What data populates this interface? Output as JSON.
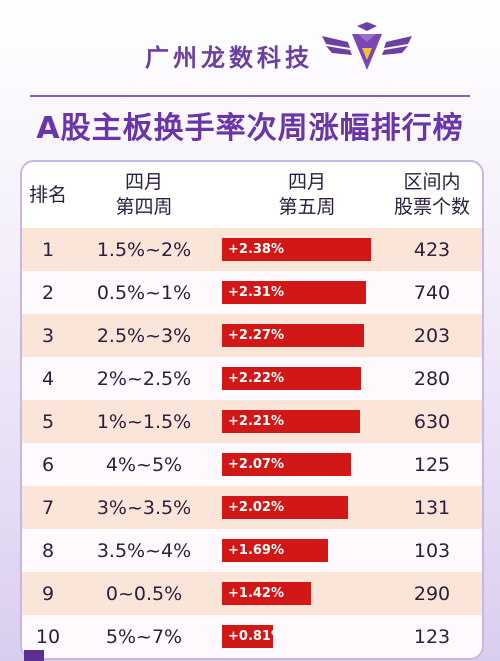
{
  "header": {
    "company": "广州龙数科技",
    "title": "A股主板换手率次周涨幅排行榜",
    "logo_icon": "purple-winged-diamond-logo",
    "colors": {
      "brand": "#6a35a8",
      "bar": "#d21717"
    }
  },
  "table": {
    "headers": {
      "rank": "排名",
      "week4_line1": "四月",
      "week4_line2": "第四周",
      "week5_line1": "四月",
      "week5_line2": "第五周",
      "count_line1": "区间内",
      "count_line2": "股票个数"
    },
    "rows": [
      {
        "rank": "1",
        "range": "1.5%~2%",
        "change": "+2.38%",
        "count": "423"
      },
      {
        "rank": "2",
        "range": "0.5%~1%",
        "change": "+2.31%",
        "count": "740"
      },
      {
        "rank": "3",
        "range": "2.5%~3%",
        "change": "+2.27%",
        "count": "203"
      },
      {
        "rank": "4",
        "range": "2%~2.5%",
        "change": "+2.22%",
        "count": "280"
      },
      {
        "rank": "5",
        "range": "1%~1.5%",
        "change": "+2.21%",
        "count": "630"
      },
      {
        "rank": "6",
        "range": "4%~5%",
        "change": "+2.07%",
        "count": "125"
      },
      {
        "rank": "7",
        "range": "3%~3.5%",
        "change": "+2.02%",
        "count": "131"
      },
      {
        "rank": "8",
        "range": "3.5%~4%",
        "change": "+1.69%",
        "count": "103"
      },
      {
        "rank": "9",
        "range": "0~0.5%",
        "change": "+1.42%",
        "count": "290"
      },
      {
        "rank": "10",
        "range": "5%~7%",
        "change": "+0.81%",
        "count": "123"
      }
    ]
  },
  "chart_data": {
    "type": "bar",
    "categories": [
      "1.5%~2%",
      "0.5%~1%",
      "2.5%~3%",
      "2%~2.5%",
      "1%~1.5%",
      "4%~5%",
      "3%~3.5%",
      "3.5%~4%",
      "0~0.5%",
      "5%~7%"
    ],
    "values": [
      2.38,
      2.31,
      2.27,
      2.22,
      2.21,
      2.07,
      2.02,
      1.69,
      1.42,
      0.81
    ],
    "title": "A股主板换手率次周涨幅排行榜",
    "orientation": "horizontal",
    "xlim": [
      0,
      2.4
    ]
  }
}
